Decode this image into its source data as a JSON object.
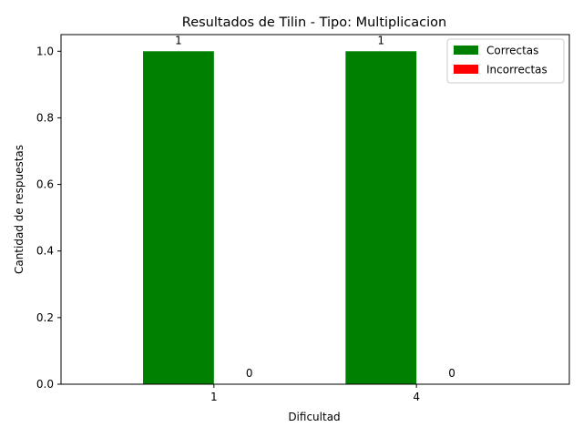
{
  "chart_data": {
    "type": "bar",
    "title": "Resultados de Tilin - Tipo: Multiplicacion",
    "xlabel": "Dificultad",
    "ylabel": "Cantidad de respuestas",
    "categories": [
      "1",
      "4"
    ],
    "series": [
      {
        "name": "Correctas",
        "color": "#008000",
        "values": [
          1,
          1
        ]
      },
      {
        "name": "Incorrectas",
        "color": "#ff0000",
        "values": [
          0,
          0
        ]
      }
    ],
    "ylim": [
      0,
      1.05
    ],
    "yticks": [
      "0.0",
      "0.2",
      "0.4",
      "0.6",
      "0.8",
      "1.0"
    ],
    "data_labels": true,
    "grid": false,
    "legend": {
      "placement": "top-right"
    }
  }
}
